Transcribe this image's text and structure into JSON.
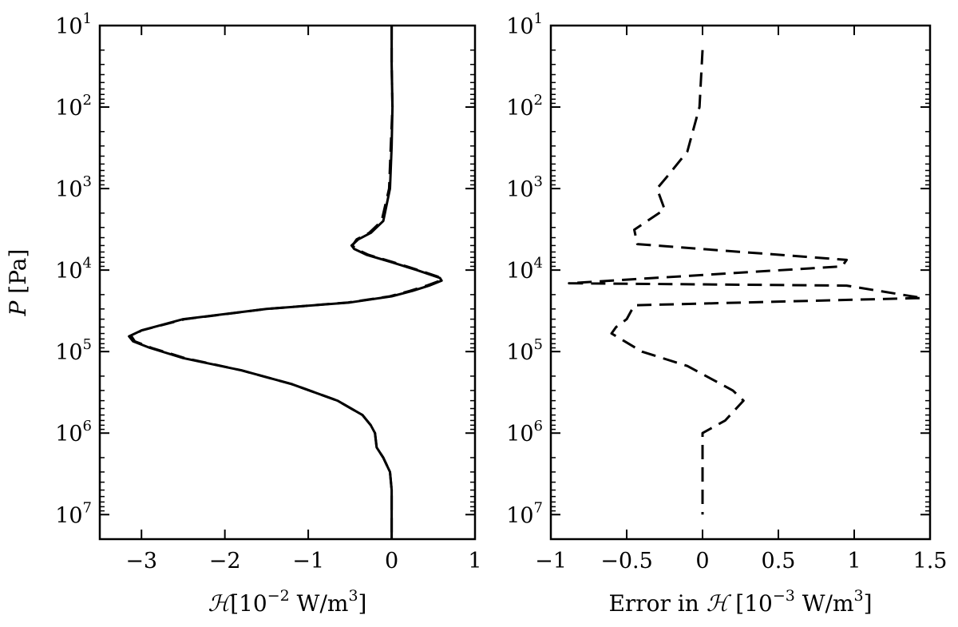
{
  "chart_data": [
    {
      "type": "line",
      "panel": "left",
      "xlabel": "ℋ [10⁻² W/m³]",
      "xlabel_parts": {
        "symbol": "ℋ",
        "bracket": "[10",
        "exp": "−2",
        "unit": " W/m",
        "unit_exp": "3",
        "close": "]"
      },
      "ylabel": "P [Pa]",
      "ylabel_parts": {
        "symbol": "P",
        "unit": " [Pa]"
      },
      "xlim": [
        -3.5,
        1
      ],
      "ylim": [
        10,
        20000000.0
      ],
      "yscale": "log",
      "y_inverted": true,
      "xticks": [
        -3,
        -2,
        -1,
        0,
        1
      ],
      "xtick_labels": [
        "−3",
        "−2",
        "−1",
        "0",
        "1"
      ],
      "yticks": [
        10,
        100,
        1000,
        10000,
        100000,
        1000000,
        10000000
      ],
      "ytick_labels": [
        {
          "base": "10",
          "exp": "1"
        },
        {
          "base": "10",
          "exp": "2"
        },
        {
          "base": "10",
          "exp": "3"
        },
        {
          "base": "10",
          "exp": "4"
        },
        {
          "base": "10",
          "exp": "5"
        },
        {
          "base": "10",
          "exp": "6"
        },
        {
          "base": "10",
          "exp": "7"
        }
      ],
      "grid": false,
      "series": [
        {
          "style": "solid",
          "color": "#000000",
          "points": [
            [
              0.0,
              10
            ],
            [
              0.0,
              30
            ],
            [
              0.01,
              100
            ],
            [
              0.0,
              300
            ],
            [
              -0.02,
              1000
            ],
            [
              -0.1,
              2500
            ],
            [
              -0.25,
              3500
            ],
            [
              -0.4,
              4200
            ],
            [
              -0.48,
              5000
            ],
            [
              -0.45,
              5500
            ],
            [
              -0.3,
              6500
            ],
            [
              0.0,
              8000
            ],
            [
              0.3,
              10000
            ],
            [
              0.58,
              12500
            ],
            [
              0.6,
              13500
            ],
            [
              0.45,
              15500
            ],
            [
              0.25,
              18000
            ],
            [
              0.0,
              21000
            ],
            [
              -0.5,
              25000
            ],
            [
              -1.5,
              30000
            ],
            [
              -2.5,
              40000
            ],
            [
              -3.0,
              55000
            ],
            [
              -3.15,
              65000
            ],
            [
              -3.1,
              75000
            ],
            [
              -2.9,
              90000
            ],
            [
              -2.5,
              120000
            ],
            [
              -1.8,
              170000
            ],
            [
              -1.2,
              250000
            ],
            [
              -0.65,
              400000
            ],
            [
              -0.35,
              600000
            ],
            [
              -0.25,
              800000
            ],
            [
              -0.2,
              1000000
            ],
            [
              -0.18,
              1500000
            ],
            [
              -0.1,
              2000000
            ],
            [
              -0.02,
              3000000
            ],
            [
              0.0,
              5000000
            ],
            [
              0.0,
              10000000
            ],
            [
              0.0,
              20000000
            ]
          ]
        },
        {
          "style": "dashed",
          "color": "#000000",
          "points": [
            [
              0.0,
              10
            ],
            [
              0.0,
              30
            ],
            [
              0.01,
              100
            ],
            [
              -0.01,
              300
            ],
            [
              -0.03,
              1000
            ],
            [
              -0.12,
              2500
            ],
            [
              -0.27,
              3500
            ],
            [
              -0.42,
              4200
            ],
            [
              -0.47,
              5000
            ],
            [
              -0.43,
              5500
            ],
            [
              -0.28,
              6500
            ],
            [
              0.02,
              8000
            ],
            [
              0.32,
              10000
            ],
            [
              0.6,
              12500
            ],
            [
              0.58,
              13500
            ],
            [
              0.42,
              15500
            ],
            [
              0.22,
              18000
            ],
            [
              -0.02,
              21000
            ],
            [
              -0.52,
              25000
            ],
            [
              -1.5,
              30000
            ],
            [
              -2.48,
              40000
            ],
            [
              -3.0,
              55000
            ],
            [
              -3.12,
              65000
            ],
            [
              -3.08,
              75000
            ],
            [
              -2.88,
              90000
            ],
            [
              -2.48,
              120000
            ],
            [
              -1.8,
              170000
            ],
            [
              -1.2,
              250000
            ],
            [
              -0.65,
              400000
            ],
            [
              -0.35,
              600000
            ],
            [
              -0.25,
              800000
            ],
            [
              -0.2,
              1000000
            ],
            [
              -0.18,
              1500000
            ],
            [
              -0.1,
              2000000
            ],
            [
              -0.02,
              3000000
            ],
            [
              0.0,
              5000000
            ],
            [
              0.0,
              10000000
            ],
            [
              0.0,
              20000000
            ]
          ]
        }
      ]
    },
    {
      "type": "line",
      "panel": "right",
      "xlabel": "Error in ℋ [10⁻³ W/m³]",
      "xlabel_parts": {
        "prefix": "Error in ",
        "symbol": "ℋ",
        "bracket": " [10",
        "exp": "−3",
        "unit": " W/m",
        "unit_exp": "3",
        "close": "]"
      },
      "xlim": [
        -1,
        1.5
      ],
      "ylim": [
        10,
        20000000.0
      ],
      "yscale": "log",
      "y_inverted": true,
      "xticks": [
        -1,
        -0.5,
        0,
        0.5,
        1,
        1.5
      ],
      "xtick_labels": [
        "−1",
        "−0.5",
        "0",
        "0.5",
        "1",
        "1.5"
      ],
      "yticks": [
        10,
        100,
        1000,
        10000,
        100000,
        1000000,
        10000000
      ],
      "ytick_labels": [
        {
          "base": "10",
          "exp": "1"
        },
        {
          "base": "10",
          "exp": "2"
        },
        {
          "base": "10",
          "exp": "3"
        },
        {
          "base": "10",
          "exp": "4"
        },
        {
          "base": "10",
          "exp": "5"
        },
        {
          "base": "10",
          "exp": "6"
        },
        {
          "base": "10",
          "exp": "7"
        }
      ],
      "grid": false,
      "series": [
        {
          "style": "dashed",
          "color": "#000000",
          "points": [
            [
              0.0,
              20
            ],
            [
              -0.02,
              100
            ],
            [
              -0.1,
              350
            ],
            [
              -0.23,
              700
            ],
            [
              -0.3,
              1000
            ],
            [
              -0.25,
              1800
            ],
            [
              -0.45,
              3200
            ],
            [
              -0.43,
              4800
            ],
            [
              0.95,
              7500
            ],
            [
              0.92,
              9000
            ],
            [
              -0.88,
              14500
            ],
            [
              0.95,
              15500
            ],
            [
              1.45,
              22000
            ],
            [
              -0.45,
              27000
            ],
            [
              -0.5,
              40000
            ],
            [
              -0.57,
              50000
            ],
            [
              -0.6,
              60000
            ],
            [
              -0.4,
              100000
            ],
            [
              -0.1,
              150000
            ],
            [
              0.2,
              300000
            ],
            [
              0.27,
              400000
            ],
            [
              0.15,
              700000
            ],
            [
              0.0,
              1000000
            ],
            [
              0.0,
              2000000
            ],
            [
              0.0,
              10000000
            ]
          ]
        }
      ]
    }
  ]
}
